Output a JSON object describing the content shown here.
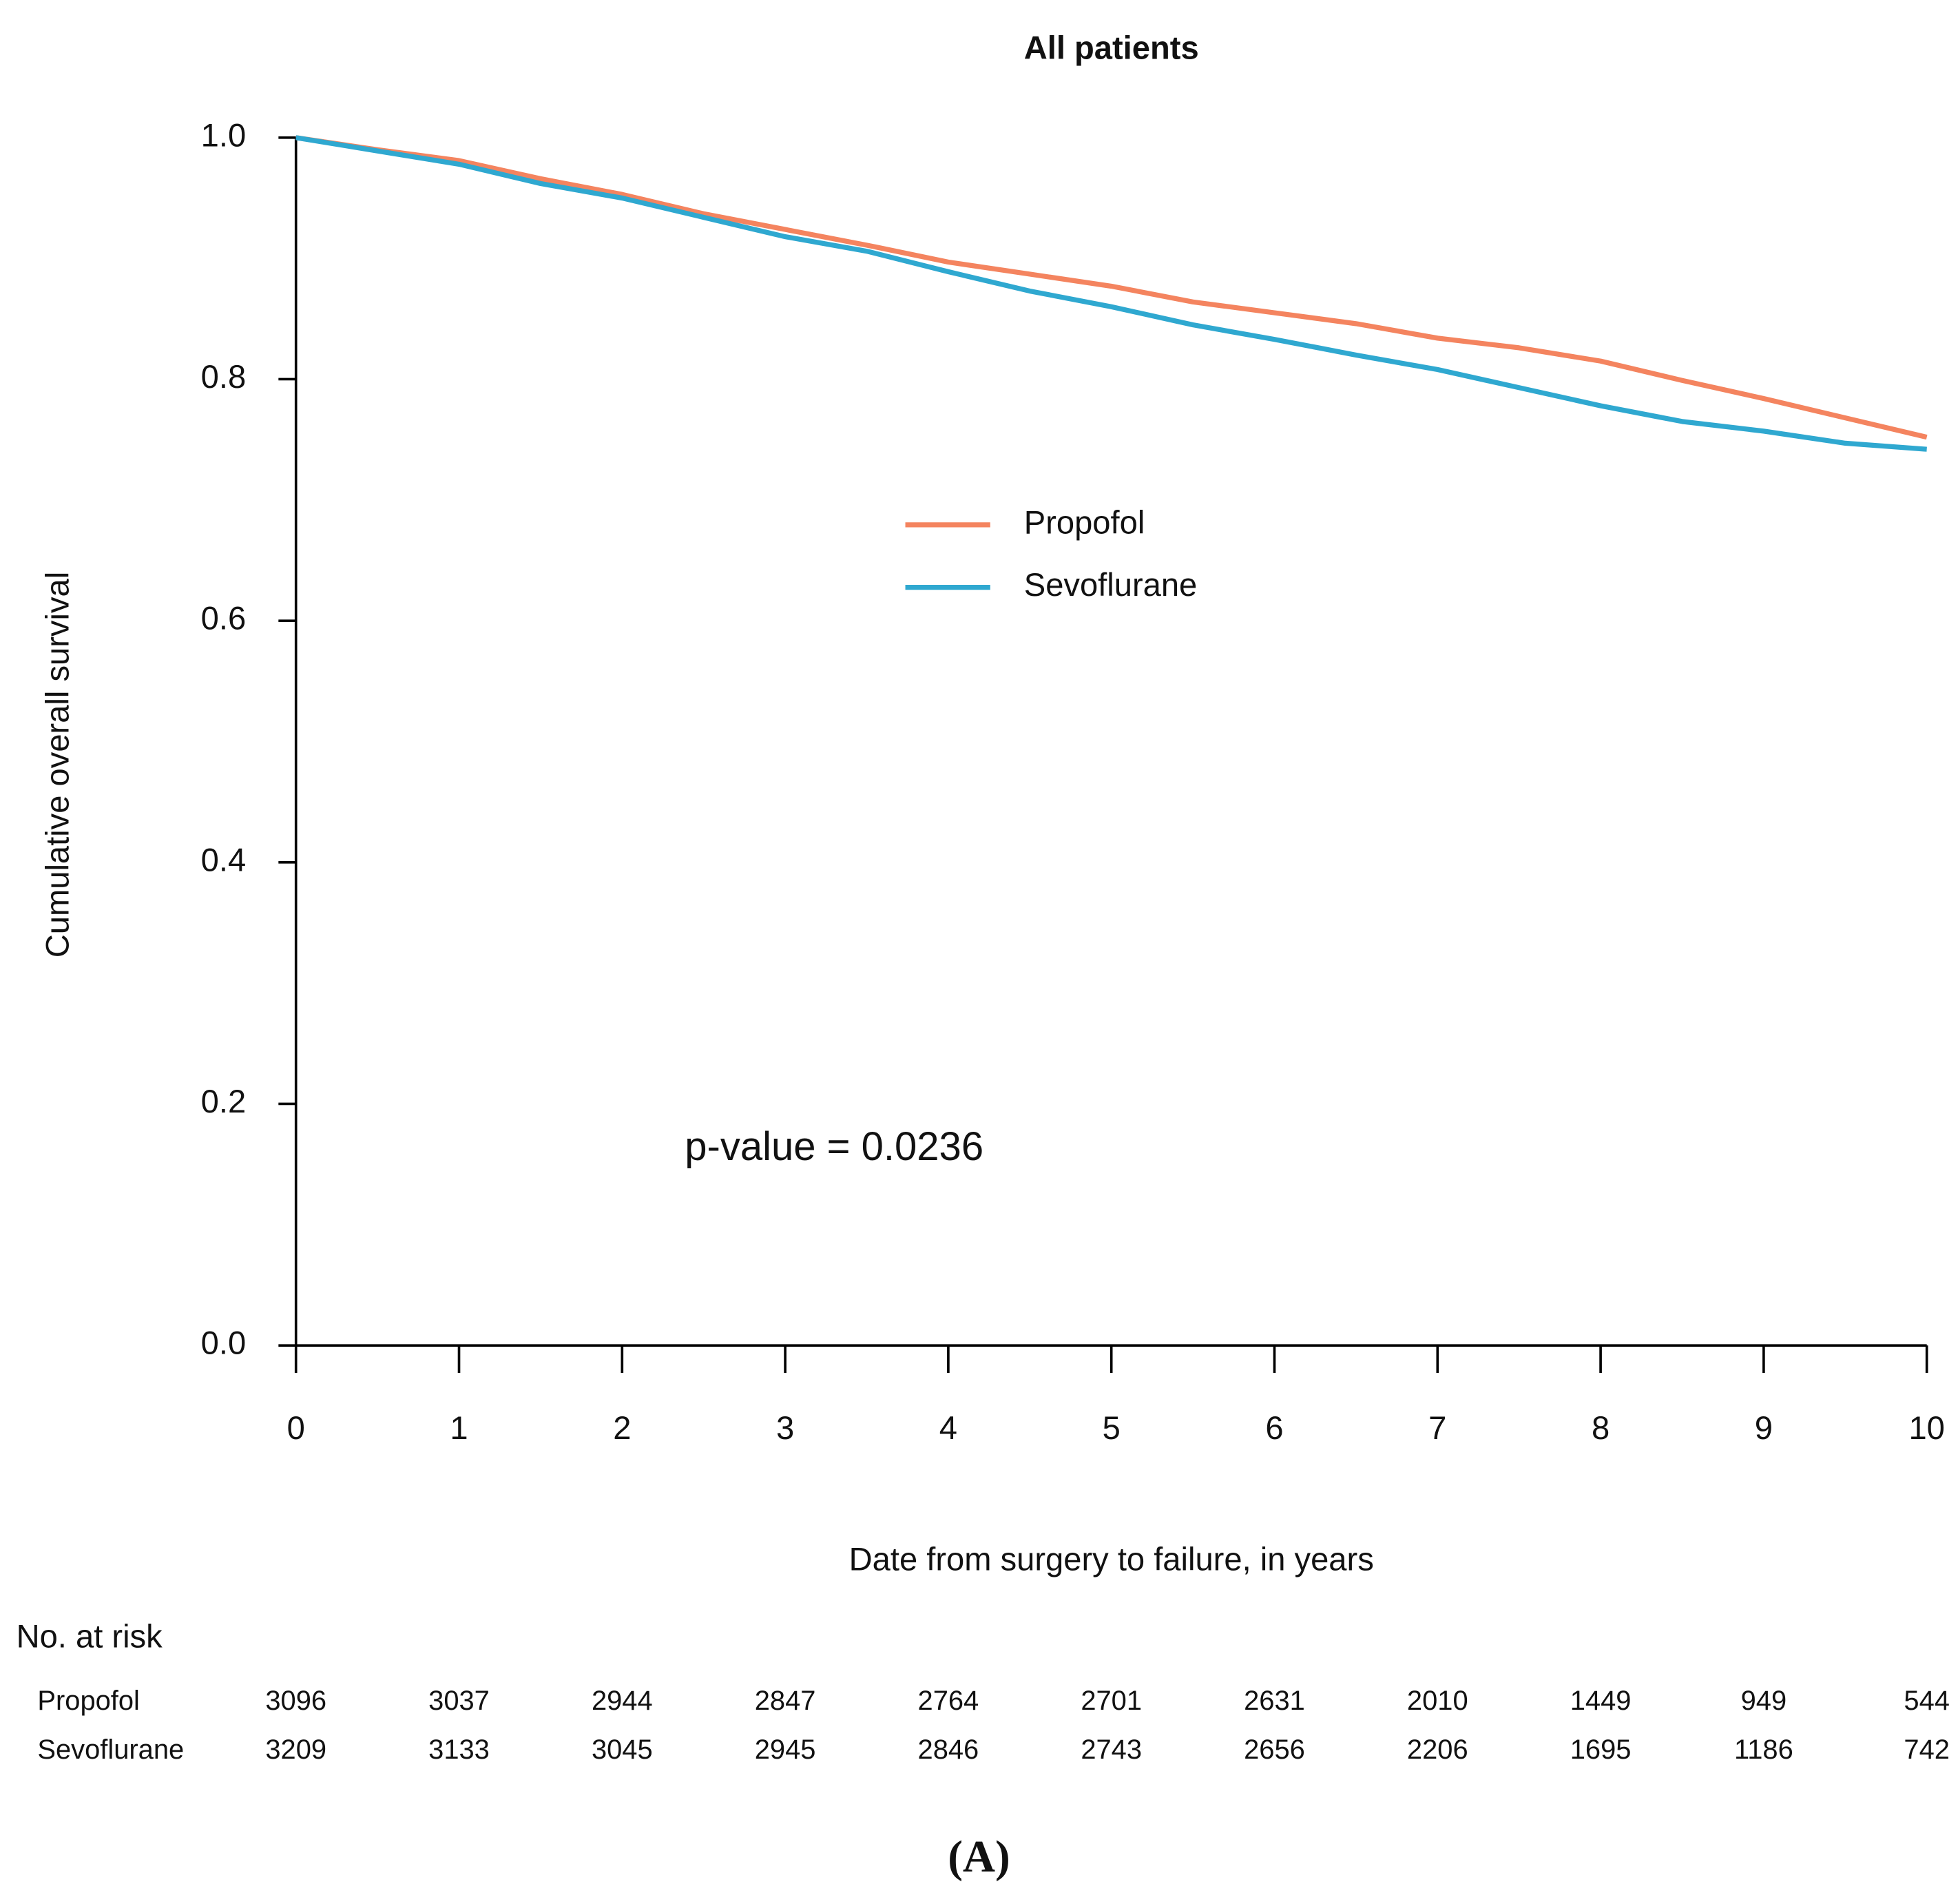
{
  "chart_data": {
    "type": "line",
    "title": "All patients",
    "x_label": "Date from surgery to failure, in years",
    "y_label": "Cumulative overall survival",
    "annotation": "p-value = 0.0236",
    "x": [
      0,
      0.5,
      1,
      1.5,
      2,
      2.5,
      3,
      3.5,
      4,
      4.5,
      5,
      5.5,
      6,
      6.5,
      7,
      7.5,
      8,
      8.5,
      9,
      9.5,
      10
    ],
    "series": [
      {
        "name": "Propofol",
        "color": "#f4845f",
        "values": [
          1.0,
          0.99,
          0.981,
          0.966,
          0.953,
          0.937,
          0.924,
          0.911,
          0.897,
          0.887,
          0.877,
          0.864,
          0.855,
          0.846,
          0.834,
          0.826,
          0.815,
          0.799,
          0.784,
          0.768,
          0.752
        ]
      },
      {
        "name": "Sevoflurane",
        "color": "#2fa8d0",
        "values": [
          1.0,
          0.989,
          0.978,
          0.962,
          0.95,
          0.934,
          0.918,
          0.906,
          0.889,
          0.873,
          0.86,
          0.845,
          0.833,
          0.82,
          0.808,
          0.793,
          0.778,
          0.765,
          0.757,
          0.747,
          0.742
        ]
      }
    ],
    "xlim": [
      0,
      10
    ],
    "ylim": [
      0,
      1
    ],
    "xticks": [
      0,
      1,
      2,
      3,
      4,
      5,
      6,
      7,
      8,
      9,
      10
    ],
    "yticks": [
      {
        "value": 0,
        "label": "0.0"
      },
      0.2,
      0.4,
      0.6,
      0.8,
      {
        "value": 1,
        "label": "1.0"
      }
    ],
    "grid": false,
    "legend": "top-center",
    "risk_table": {
      "title": "No. at risk",
      "rows": [
        {
          "name": "Propofol",
          "values": [
            3096,
            3037,
            2944,
            2847,
            2764,
            2701,
            2631,
            2010,
            1449,
            949,
            544
          ]
        },
        {
          "name": "Sevoflurane",
          "values": [
            3209,
            3133,
            3045,
            2945,
            2846,
            2743,
            2656,
            2206,
            1695,
            1186,
            742
          ]
        }
      ]
    }
  },
  "caption": "(A)"
}
